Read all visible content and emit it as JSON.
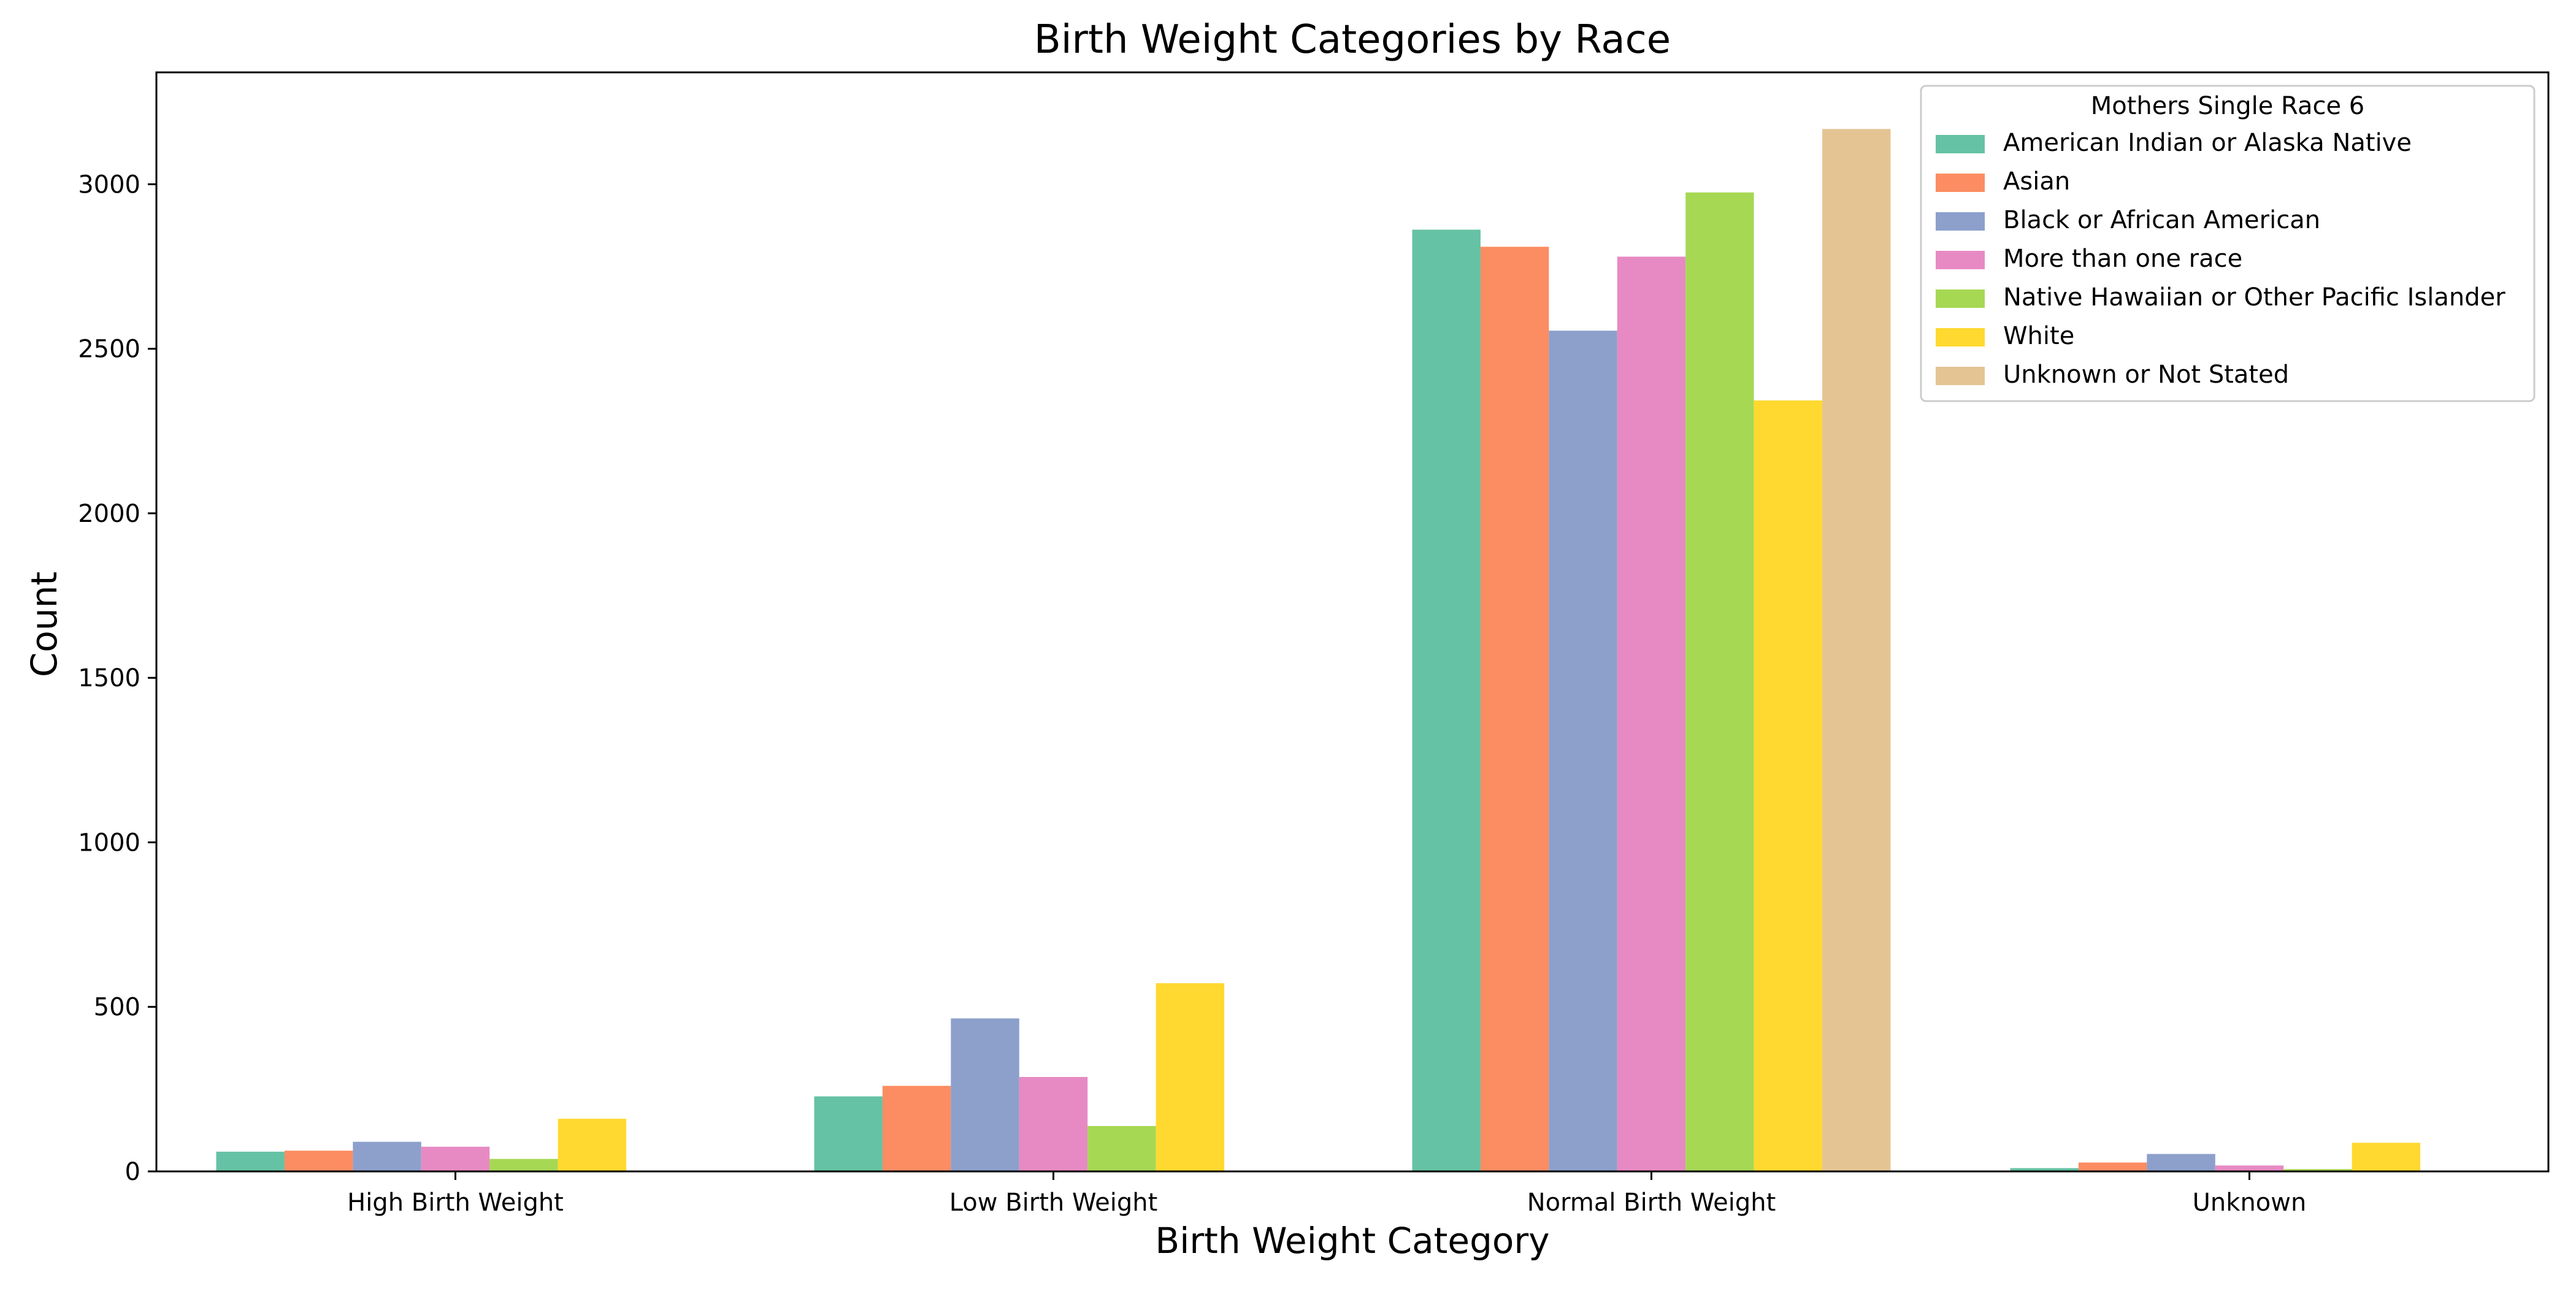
{
  "chart_data": {
    "type": "bar",
    "title": "Birth Weight Categories by Race",
    "xlabel": "Birth Weight Category",
    "ylabel": "Count",
    "ylim": [
      0,
      3340
    ],
    "yticks": [
      0,
      500,
      1000,
      1500,
      2000,
      2500,
      3000
    ],
    "grid": false,
    "legend": {
      "title": "Mothers Single Race 6",
      "position": "top-right"
    },
    "categories": [
      "High Birth Weight",
      "Low Birth Weight",
      "Normal Birth Weight",
      "Unknown"
    ],
    "series": [
      {
        "name": "American Indian or Alaska Native",
        "color": "#66c2a5",
        "values": [
          60,
          228,
          2862,
          10
        ]
      },
      {
        "name": "Asian",
        "color": "#fc8d62",
        "values": [
          63,
          260,
          2810,
          27
        ]
      },
      {
        "name": "Black or African American",
        "color": "#8da0cb",
        "values": [
          90,
          465,
          2555,
          53
        ]
      },
      {
        "name": "More than one race",
        "color": "#e78ac3",
        "values": [
          75,
          287,
          2780,
          18
        ]
      },
      {
        "name": "Native Hawaiian or Other Pacific Islander",
        "color": "#a6d854",
        "values": [
          38,
          138,
          2975,
          7
        ]
      },
      {
        "name": "White",
        "color": "#ffd92f",
        "values": [
          160,
          572,
          2343,
          87
        ]
      },
      {
        "name": "Unknown or Not Stated",
        "color": "#e5c494",
        "values": [
          null,
          null,
          3168,
          null
        ]
      }
    ]
  }
}
